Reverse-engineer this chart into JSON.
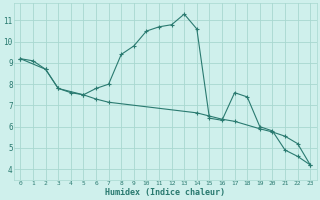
{
  "xlabel": "Humidex (Indice chaleur)",
  "xlim": [
    -0.5,
    23.5
  ],
  "ylim": [
    3.5,
    11.8
  ],
  "xticks": [
    0,
    1,
    2,
    3,
    4,
    5,
    6,
    7,
    8,
    9,
    10,
    11,
    12,
    13,
    14,
    15,
    16,
    17,
    18,
    19,
    20,
    21,
    22,
    23
  ],
  "yticks": [
    4,
    5,
    6,
    7,
    8,
    9,
    10,
    11
  ],
  "background_color": "#cff0ec",
  "grid_color": "#a8d8d0",
  "line_color": "#2a7a70",
  "line1_x": [
    0,
    1,
    2,
    3,
    4,
    5,
    6,
    7,
    8,
    9,
    10,
    11,
    12,
    13,
    14,
    15,
    16,
    17,
    18,
    19,
    20,
    21,
    22,
    23
  ],
  "line1_y": [
    9.2,
    9.1,
    8.7,
    7.8,
    7.6,
    7.5,
    7.8,
    8.0,
    9.4,
    9.8,
    10.5,
    10.7,
    10.8,
    11.3,
    10.6,
    6.4,
    6.3,
    7.6,
    7.4,
    6.0,
    5.8,
    4.9,
    4.6,
    4.2
  ],
  "line1_markers": [
    0,
    1,
    2,
    3,
    4,
    5,
    6,
    7,
    8,
    9,
    10,
    11,
    12,
    13,
    14,
    15,
    16,
    17,
    18,
    19,
    20,
    21,
    22,
    23
  ],
  "line2_x": [
    0,
    2,
    3,
    5,
    6,
    7,
    14,
    15,
    16,
    17,
    19,
    20,
    21,
    22,
    23
  ],
  "line2_y": [
    9.2,
    8.7,
    7.8,
    7.5,
    7.3,
    7.15,
    6.65,
    6.5,
    6.35,
    6.25,
    5.9,
    5.75,
    5.55,
    5.2,
    4.2
  ],
  "font_color": "#2a7a70",
  "markersize": 2.5
}
